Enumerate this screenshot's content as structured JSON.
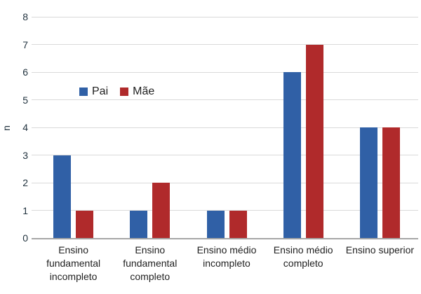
{
  "chart_data": {
    "type": "bar",
    "title": "",
    "xlabel": "",
    "ylabel": "n",
    "ylim": [
      0,
      8
    ],
    "ytick_step": 1,
    "ytick_labels": [
      "0",
      "1",
      "2",
      "3",
      "4",
      "5",
      "6",
      "7",
      "8"
    ],
    "grid": true,
    "legend_position": "inside-top-left",
    "categories": [
      "Ensino fundamental incompleto",
      "Ensino fundamental completo",
      "Ensino médio incompleto",
      "Ensino médio completo",
      "Ensino superior"
    ],
    "category_label_lines": [
      [
        "Ensino",
        "fundamental",
        "incompleto"
      ],
      [
        "Ensino",
        "fundamental",
        "completo"
      ],
      [
        "Ensino médio",
        "incompleto"
      ],
      [
        "Ensino médio",
        "completo"
      ],
      [
        "Ensino superior"
      ]
    ],
    "series": [
      {
        "name": "Pai",
        "color": "#3060a6",
        "values": [
          3,
          1,
          1,
          6,
          4
        ]
      },
      {
        "name": "Mãe",
        "color": "#b02a2b",
        "values": [
          1,
          2,
          1,
          7,
          4
        ]
      }
    ]
  },
  "style_colors": {
    "gridline": "#d9d9d9",
    "axis_line": "#a6a6a6",
    "tick_text": "#22333f",
    "label_text": "#1f1f1f",
    "background": "#ffffff"
  }
}
